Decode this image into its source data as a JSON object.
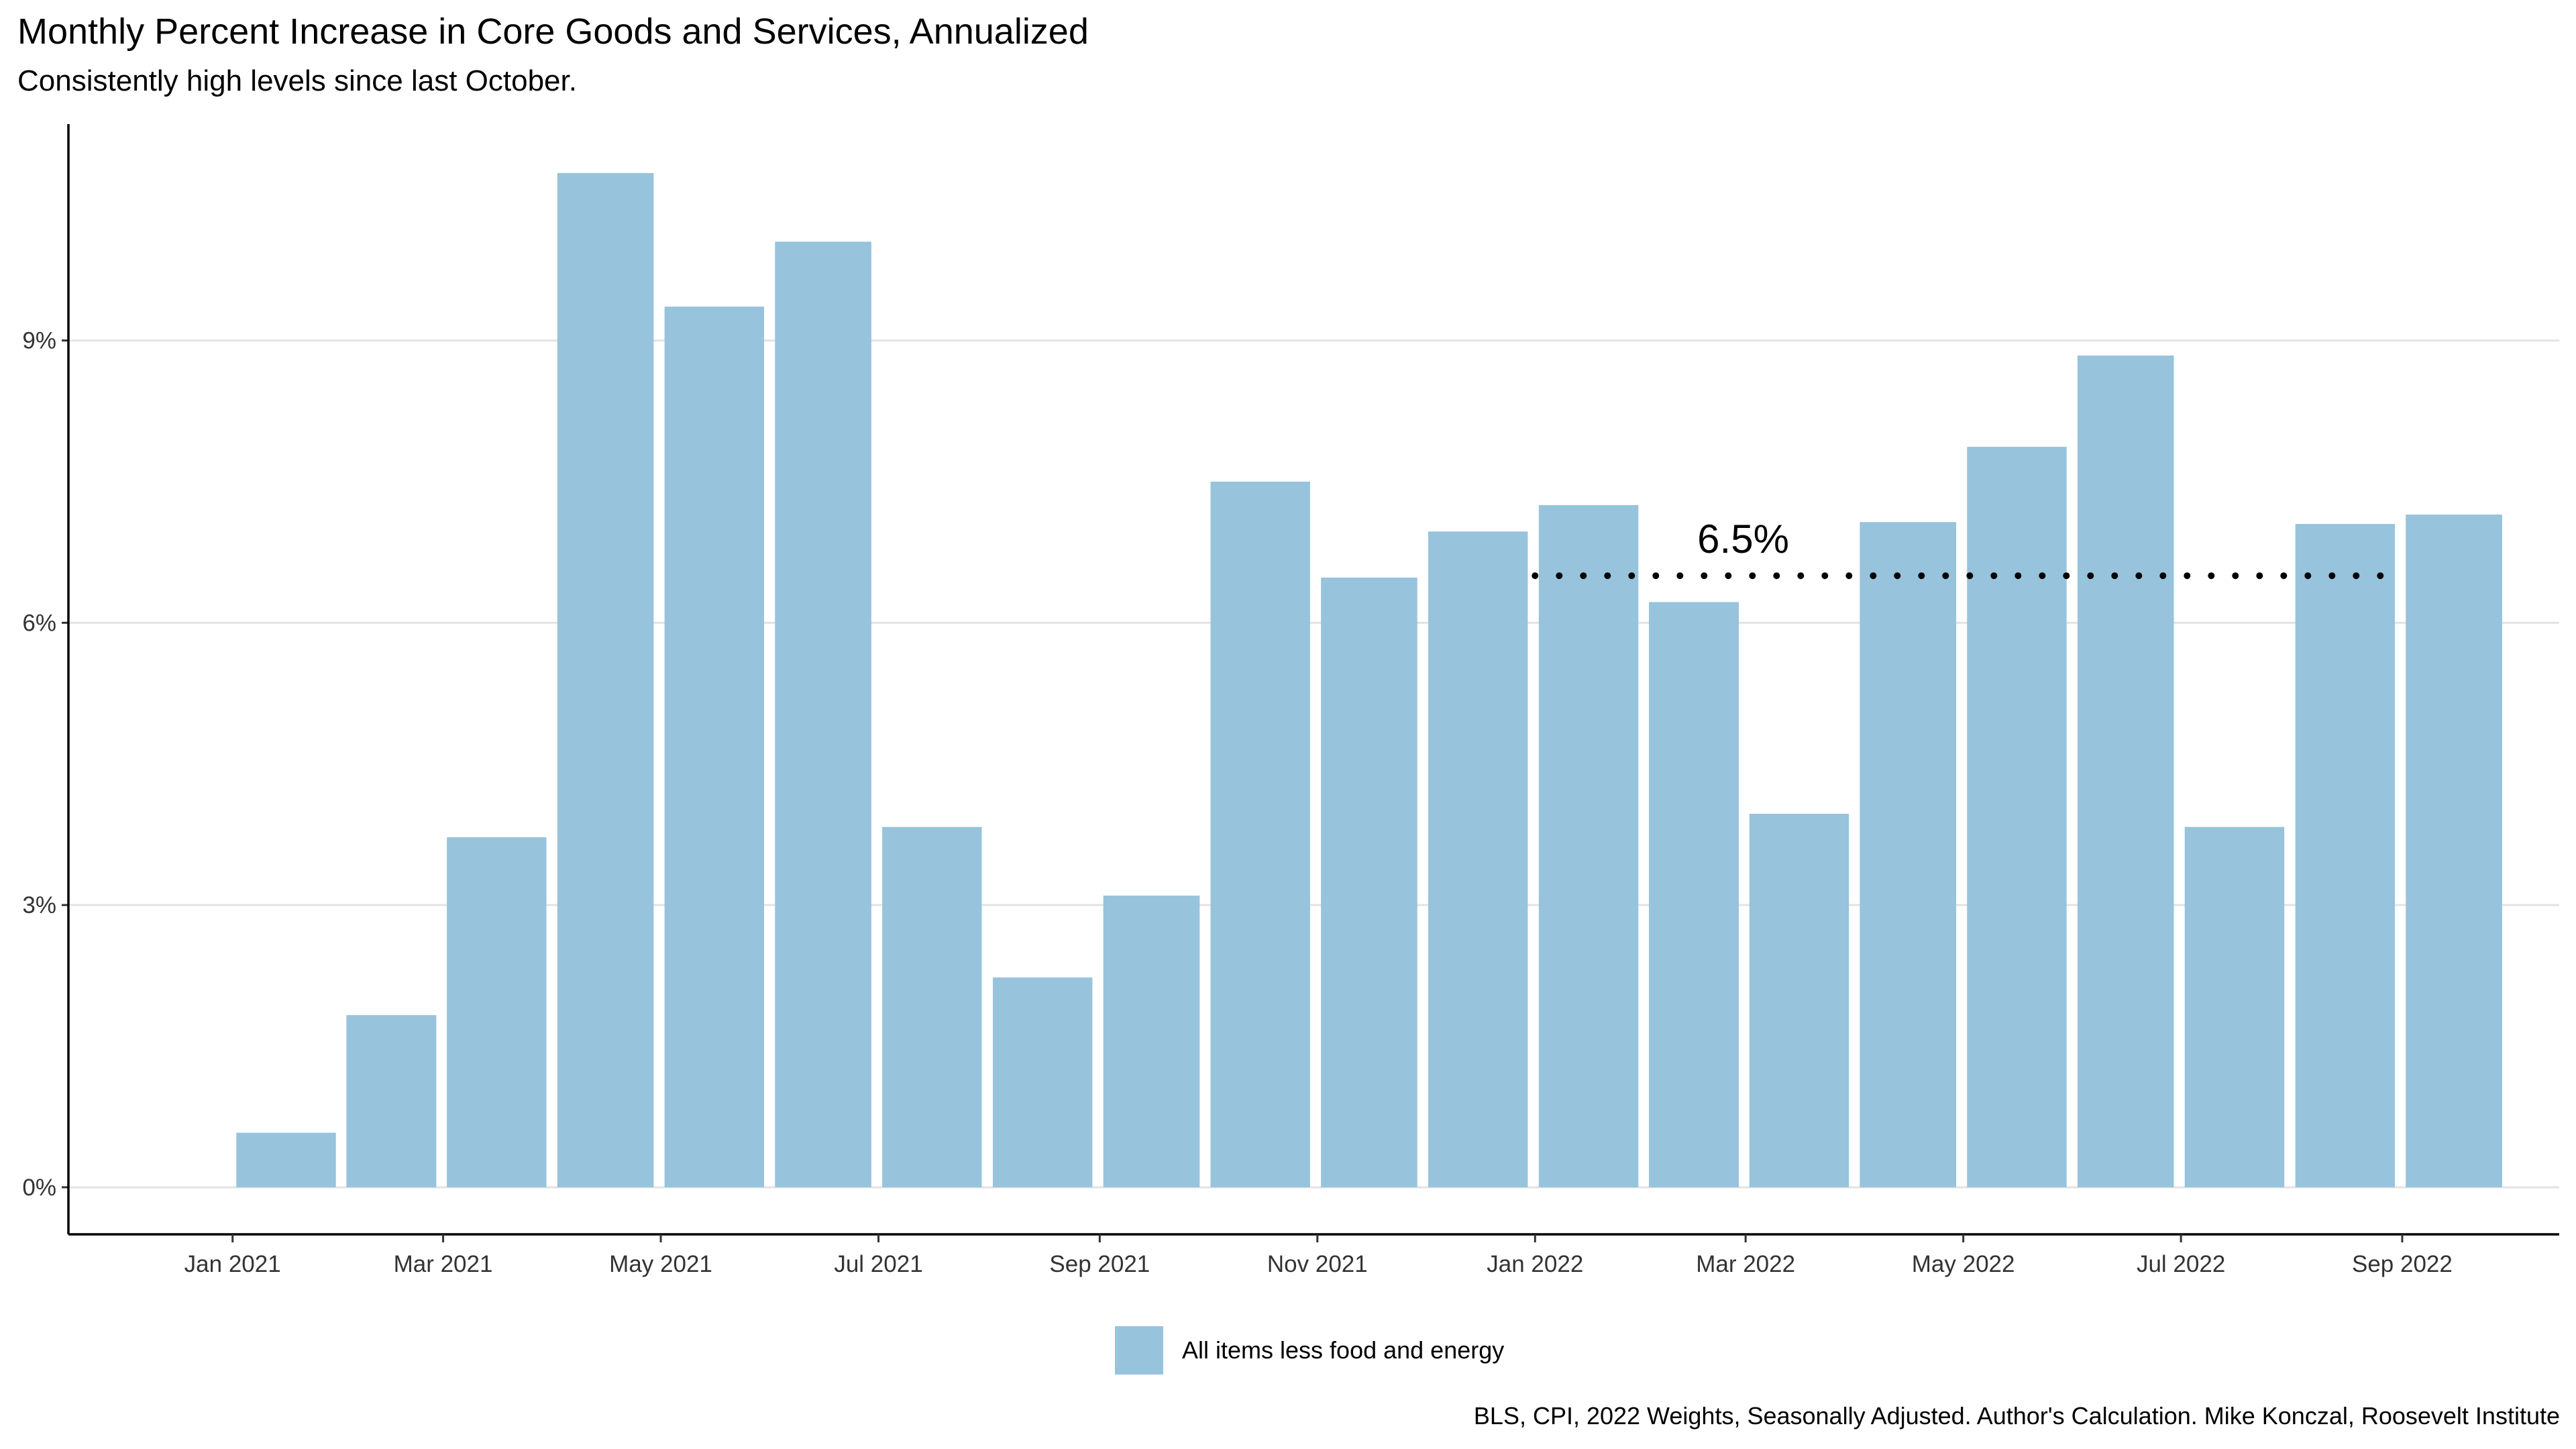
{
  "chart_data": {
    "type": "bar",
    "title": "Monthly Percent Increase in Core Goods and Services, Annualized",
    "subtitle": "Consistently high levels since last October.",
    "xlabel": "",
    "ylabel": "",
    "caption": "BLS, CPI, 2022 Weights, Seasonally Adjusted. Author's Calculation. Mike Konczal, Roosevelt Institute",
    "x": [
      "2021-01",
      "2021-02",
      "2021-03",
      "2021-04",
      "2021-05",
      "2021-06",
      "2021-07",
      "2021-08",
      "2021-09",
      "2021-10",
      "2021-11",
      "2021-12",
      "2022-01",
      "2022-02",
      "2022-03",
      "2022-04",
      "2022-05",
      "2022-06",
      "2022-07",
      "2022-08",
      "2022-09"
    ],
    "series": [
      {
        "name": "All items less food and energy",
        "color": "#97c3dc",
        "values": [
          0.58,
          1.83,
          3.72,
          10.78,
          9.36,
          10.05,
          3.83,
          2.23,
          3.1,
          7.5,
          6.48,
          6.97,
          7.25,
          6.22,
          3.97,
          7.07,
          7.87,
          8.84,
          3.83,
          7.05,
          7.15
        ]
      }
    ],
    "x_ticks": [
      "Jan 2021",
      "Mar 2021",
      "May 2021",
      "Jul 2021",
      "Sep 2021",
      "Nov 2021",
      "Jan 2022",
      "Mar 2022",
      "May 2022",
      "Jul 2022",
      "Sep 2022"
    ],
    "y_ticks": [
      0,
      3,
      6,
      9
    ],
    "y_tick_labels": [
      "0%",
      "3%",
      "6%",
      "9%"
    ],
    "ylim": [
      -0.5,
      11.3
    ],
    "xlim": [
      "2020-11-16",
      "2022-10-15"
    ],
    "grid": "horizontal major gridlines",
    "legend_position": "bottom",
    "annotations": [
      {
        "text": "6.5%",
        "value": 6.5,
        "x_start": "2022-01-01",
        "x_end": "2022-09-01",
        "line_style": "dotted"
      }
    ]
  }
}
